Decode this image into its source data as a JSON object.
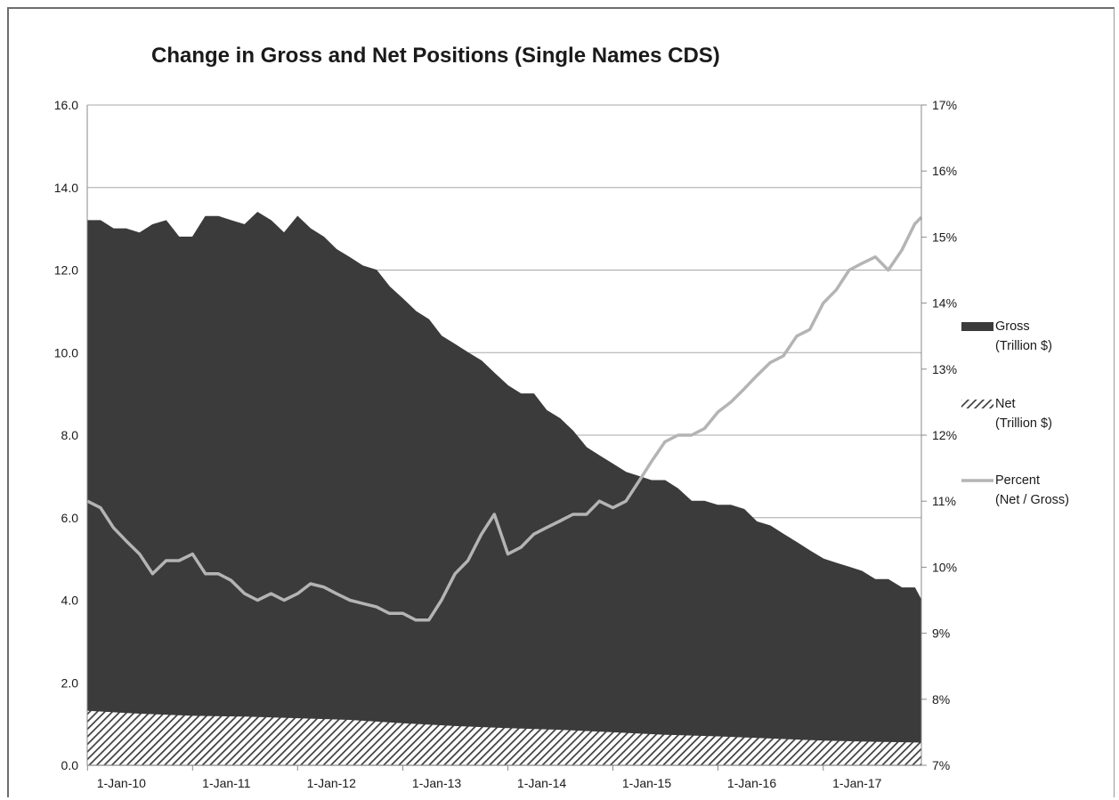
{
  "chart_data": {
    "type": "area",
    "title": "Change in Gross and Net Positions (Single Names CDS)",
    "x_ticks": [
      "1-Jan-10",
      "1-Jan-11",
      "1-Jan-12",
      "1-Jan-13",
      "1-Jan-14",
      "1-Jan-15",
      "1-Jan-16",
      "1-Jan-17"
    ],
    "x_range": [
      "2009-12-31",
      "2017-12-08"
    ],
    "y_left": {
      "ticks": [
        "0.0",
        "2.0",
        "4.0",
        "6.0",
        "8.0",
        "10.0",
        "12.0",
        "14.0",
        "16.0"
      ],
      "range": [
        0,
        16
      ]
    },
    "y_right": {
      "ticks": [
        "7%",
        "8%",
        "9%",
        "10%",
        "11%",
        "12%",
        "13%",
        "14%",
        "15%",
        "16%",
        "17%"
      ],
      "range": [
        7,
        17
      ]
    },
    "grid": "horizontal",
    "legend_position": "right",
    "legend": [
      {
        "line1": "Gross",
        "line2": "(Trillion $)"
      },
      {
        "line1": "Net",
        "line2": "(Trillion $)"
      },
      {
        "line1": "Percent",
        "line2": "(Net / Gross)"
      }
    ],
    "colors": {
      "gross": "#3b3b3b",
      "net": "#474747",
      "percent": "#b4b4b4"
    },
    "series": [
      {
        "key": "gross",
        "name": "Gross",
        "x": [
          "2010-01-01",
          "2010-02-15",
          "2010-04-01",
          "2010-05-15",
          "2010-07-01",
          "2010-08-15",
          "2010-10-01",
          "2010-11-15",
          "2011-01-01",
          "2011-02-15",
          "2011-04-01",
          "2011-05-15",
          "2011-07-01",
          "2011-08-15",
          "2011-10-01",
          "2011-11-15",
          "2012-01-01",
          "2012-02-15",
          "2012-04-01",
          "2012-05-15",
          "2012-07-01",
          "2012-08-15",
          "2012-10-01",
          "2012-11-15",
          "2013-01-01",
          "2013-02-15",
          "2013-04-01",
          "2013-05-15",
          "2013-07-01",
          "2013-08-15",
          "2013-10-01",
          "2013-11-15",
          "2014-01-01",
          "2014-02-15",
          "2014-04-01",
          "2014-05-15",
          "2014-07-01",
          "2014-08-15",
          "2014-10-01",
          "2014-11-15",
          "2015-01-01",
          "2015-02-15",
          "2015-04-01",
          "2015-05-15",
          "2015-07-01",
          "2015-08-15",
          "2015-10-01",
          "2015-11-15",
          "2016-01-01",
          "2016-02-15",
          "2016-04-01",
          "2016-05-15",
          "2016-07-01",
          "2016-08-15",
          "2016-10-01",
          "2016-11-15",
          "2017-01-01",
          "2017-02-15",
          "2017-04-01",
          "2017-05-15",
          "2017-07-01",
          "2017-08-15",
          "2017-10-01",
          "2017-11-15",
          "2017-12-08"
        ],
        "values": [
          13.2,
          13.2,
          13.0,
          13.0,
          12.9,
          13.1,
          13.2,
          12.8,
          12.8,
          13.3,
          13.3,
          13.2,
          13.1,
          13.4,
          13.2,
          12.9,
          13.3,
          13.0,
          12.8,
          12.5,
          12.3,
          12.1,
          12.0,
          11.6,
          11.3,
          11.0,
          10.8,
          10.4,
          10.2,
          10.0,
          9.8,
          9.5,
          9.2,
          9.0,
          9.0,
          8.6,
          8.4,
          8.1,
          7.7,
          7.5,
          7.3,
          7.1,
          7.0,
          6.9,
          6.9,
          6.7,
          6.4,
          6.4,
          6.3,
          6.3,
          6.2,
          5.9,
          5.8,
          5.6,
          5.4,
          5.2,
          5.0,
          4.9,
          4.8,
          4.7,
          4.5,
          4.5,
          4.3,
          4.3,
          4.0
        ]
      },
      {
        "key": "net",
        "name": "Net",
        "x": [
          "2010-01-01",
          "2010-07-01",
          "2011-01-01",
          "2011-07-01",
          "2012-01-01",
          "2012-07-01",
          "2013-01-01",
          "2013-07-01",
          "2014-01-01",
          "2014-07-01",
          "2015-01-01",
          "2015-07-01",
          "2016-01-01",
          "2016-07-01",
          "2017-01-01",
          "2017-07-01",
          "2017-12-08"
        ],
        "values": [
          1.32,
          1.25,
          1.2,
          1.18,
          1.14,
          1.1,
          1.02,
          0.95,
          0.9,
          0.86,
          0.8,
          0.74,
          0.7,
          0.65,
          0.6,
          0.57,
          0.55
        ]
      },
      {
        "key": "percent",
        "name": "Percent",
        "axis": "right",
        "x": [
          "2010-01-01",
          "2010-02-15",
          "2010-04-01",
          "2010-05-15",
          "2010-07-01",
          "2010-08-15",
          "2010-10-01",
          "2010-11-15",
          "2011-01-01",
          "2011-02-15",
          "2011-04-01",
          "2011-05-15",
          "2011-07-01",
          "2011-08-15",
          "2011-10-01",
          "2011-11-15",
          "2012-01-01",
          "2012-02-15",
          "2012-04-01",
          "2012-05-15",
          "2012-07-01",
          "2012-08-15",
          "2012-10-01",
          "2012-11-15",
          "2013-01-01",
          "2013-02-15",
          "2013-04-01",
          "2013-05-15",
          "2013-07-01",
          "2013-08-15",
          "2013-10-01",
          "2013-11-15",
          "2014-01-01",
          "2014-02-15",
          "2014-04-01",
          "2014-05-15",
          "2014-07-01",
          "2014-08-15",
          "2014-10-01",
          "2014-11-15",
          "2015-01-01",
          "2015-02-15",
          "2015-04-01",
          "2015-05-15",
          "2015-07-01",
          "2015-08-15",
          "2015-10-01",
          "2015-11-15",
          "2016-01-01",
          "2016-02-15",
          "2016-04-01",
          "2016-05-15",
          "2016-07-01",
          "2016-08-15",
          "2016-10-01",
          "2016-11-15",
          "2017-01-01",
          "2017-02-15",
          "2017-04-01",
          "2017-05-15",
          "2017-07-01",
          "2017-08-15",
          "2017-10-01",
          "2017-11-15",
          "2017-12-08"
        ],
        "values": [
          11.0,
          10.9,
          10.6,
          10.4,
          10.2,
          9.9,
          10.1,
          10.1,
          10.2,
          9.9,
          9.9,
          9.8,
          9.6,
          9.5,
          9.6,
          9.5,
          9.6,
          9.75,
          9.7,
          9.6,
          9.5,
          9.45,
          9.4,
          9.3,
          9.3,
          9.2,
          9.2,
          9.5,
          9.9,
          10.1,
          10.5,
          10.8,
          10.2,
          10.3,
          10.5,
          10.6,
          10.7,
          10.8,
          10.8,
          11.0,
          10.9,
          11.0,
          11.3,
          11.6,
          11.9,
          12.0,
          12.0,
          12.1,
          12.35,
          12.5,
          12.7,
          12.9,
          13.1,
          13.2,
          13.5,
          13.6,
          14.0,
          14.2,
          14.5,
          14.6,
          14.7,
          14.5,
          14.8,
          15.2,
          15.3
        ]
      }
    ]
  }
}
